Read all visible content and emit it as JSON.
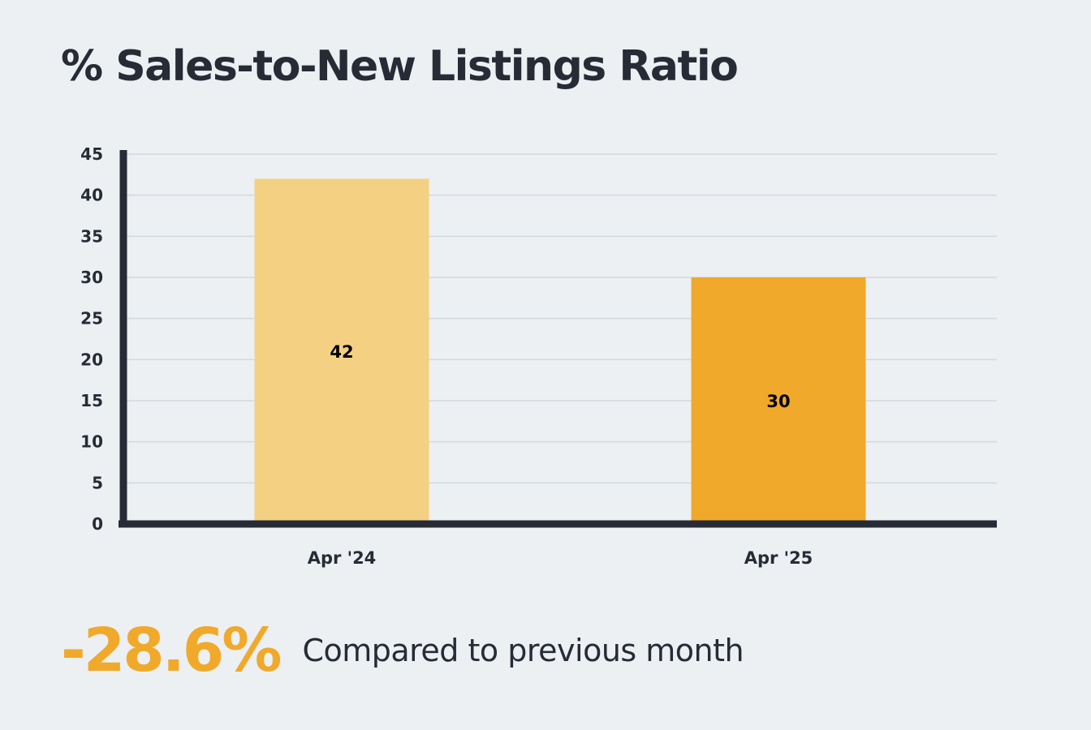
{
  "title": "% Sales-to-New Listings Ratio",
  "chart_data": {
    "type": "bar",
    "categories": [
      "Apr '24",
      "Apr '25"
    ],
    "values": [
      42,
      30
    ],
    "data_labels": [
      "42",
      "30"
    ],
    "ylim": [
      0,
      45
    ],
    "y_ticks": [
      0,
      5,
      10,
      15,
      20,
      25,
      30,
      35,
      40,
      45
    ],
    "grid": true,
    "bar_colors": [
      "#f4d083",
      "#f0a92a"
    ]
  },
  "summary": {
    "change": "-28.6%",
    "caption": "Compared to previous month"
  },
  "colors": {
    "background": "#ecf0f3",
    "text": "#272b36",
    "axis": "#272b36",
    "grid": "#d3d8dd",
    "accent": "#f0a92a"
  }
}
